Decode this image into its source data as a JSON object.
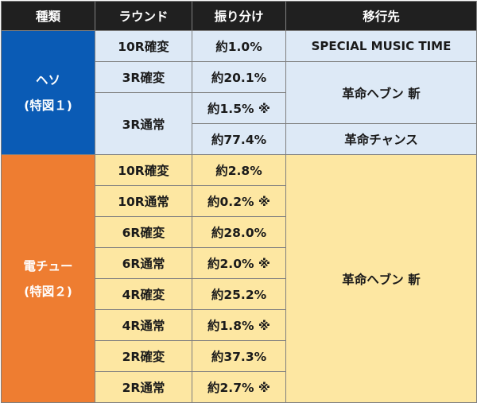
{
  "header": {
    "col1": "種類",
    "col2": "ラウンド",
    "col3": "振り分け",
    "col4": "移行先"
  },
  "heso": {
    "name": "ヘソ",
    "sub": "(特図１)",
    "rows": [
      {
        "round": "10R確変",
        "rate": "約1.0%"
      },
      {
        "round": "3R確変",
        "rate": "約20.1%"
      },
      {
        "round": "3R通常",
        "rate": "約1.5% ※"
      },
      {
        "rate": "約77.4%"
      }
    ],
    "dest": [
      "SPECIAL MUSIC TIME",
      "革命ヘブン 斬",
      "革命チャンス"
    ]
  },
  "denchu": {
    "name": "電チュー",
    "sub": "(特図２)",
    "rows": [
      {
        "round": "10R確変",
        "rate": "約2.8%"
      },
      {
        "round": "10R通常",
        "rate": "約0.2% ※"
      },
      {
        "round": "6R確変",
        "rate": "約28.0%"
      },
      {
        "round": "6R通常",
        "rate": "約2.0% ※"
      },
      {
        "round": "4R確変",
        "rate": "約25.2%"
      },
      {
        "round": "4R通常",
        "rate": "約1.8% ※"
      },
      {
        "round": "2R確変",
        "rate": "約37.3%"
      },
      {
        "round": "2R通常",
        "rate": "約2.7% ※"
      }
    ],
    "dest": "革命ヘブン 斬"
  },
  "colors": {
    "header": "#202020",
    "heso": "#0a5bb5",
    "denchu": "#ee7d31",
    "heso_light": "#dde9f6",
    "denchu_light": "#fde7a2"
  }
}
